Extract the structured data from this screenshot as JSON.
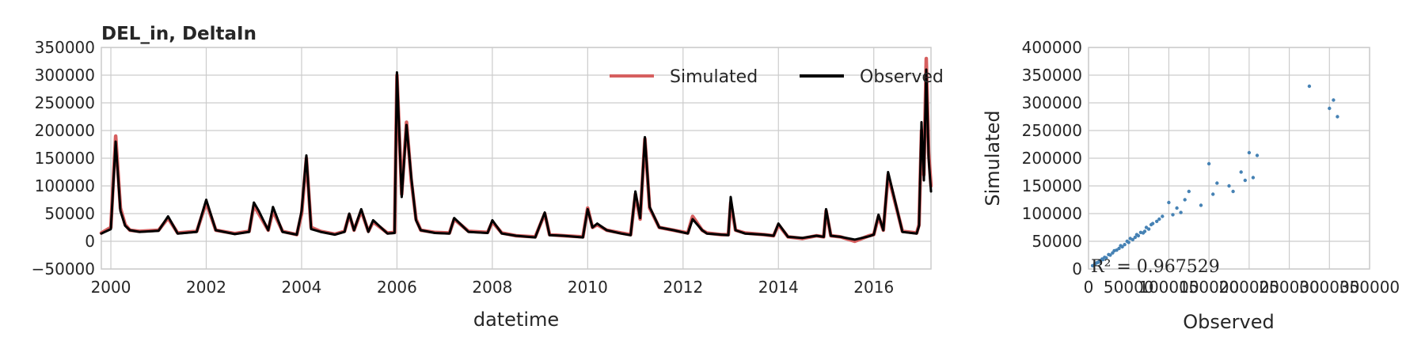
{
  "chart_data": [
    {
      "type": "line",
      "title": "DEL_in, DeltaIn",
      "xlabel": "datetime",
      "ylabel": "",
      "xlim": [
        1999.8,
        2017.2
      ],
      "ylim": [
        -50000,
        350000
      ],
      "x_ticks": [
        "2000",
        "2002",
        "2004",
        "2006",
        "2008",
        "2010",
        "2012",
        "2014",
        "2016"
      ],
      "y_ticks": [
        "−50000",
        "0",
        "50000",
        "100000",
        "150000",
        "200000",
        "250000",
        "300000",
        "350000"
      ],
      "grid": true,
      "legend_position": "top-right",
      "legend": [
        "Simulated",
        "Observed"
      ],
      "series": [
        {
          "name": "Simulated",
          "color": "#d65f5f",
          "x": [
            1999.8,
            2000.0,
            2000.1,
            2000.2,
            2000.3,
            2000.4,
            2000.6,
            2001.0,
            2001.2,
            2001.4,
            2001.8,
            2002.0,
            2002.2,
            2002.6,
            2002.9,
            2003.0,
            2003.1,
            2003.3,
            2003.4,
            2003.6,
            2003.9,
            2004.0,
            2004.1,
            2004.2,
            2004.4,
            2004.7,
            2004.9,
            2005.0,
            2005.1,
            2005.25,
            2005.4,
            2005.5,
            2005.8,
            2005.95,
            2006.0,
            2006.1,
            2006.2,
            2006.3,
            2006.4,
            2006.5,
            2006.8,
            2007.1,
            2007.2,
            2007.5,
            2007.9,
            2008.0,
            2008.2,
            2008.5,
            2008.9,
            2009.1,
            2009.2,
            2009.5,
            2009.9,
            2010.0,
            2010.1,
            2010.2,
            2010.4,
            2010.7,
            2010.9,
            2011.0,
            2011.1,
            2011.2,
            2011.3,
            2011.5,
            2011.8,
            2012.1,
            2012.2,
            2012.4,
            2012.5,
            2012.8,
            2012.95,
            2013.0,
            2013.1,
            2013.3,
            2013.7,
            2013.9,
            2014.0,
            2014.2,
            2014.5,
            2014.8,
            2014.95,
            2015.0,
            2015.1,
            2015.3,
            2015.6,
            2015.9,
            2016.0,
            2016.1,
            2016.2,
            2016.3,
            2016.6,
            2016.9,
            2016.95,
            2017.0,
            2017.05,
            2017.1,
            2017.15,
            2017.2
          ],
          "y": [
            15000,
            25000,
            190000,
            60000,
            30000,
            20000,
            18000,
            20000,
            42000,
            15000,
            18000,
            70000,
            20000,
            14000,
            18000,
            65000,
            50000,
            20000,
            55000,
            18000,
            12000,
            50000,
            150000,
            25000,
            18000,
            13000,
            18000,
            48000,
            20000,
            55000,
            18000,
            35000,
            15000,
            16000,
            300000,
            85000,
            215000,
            110000,
            40000,
            20000,
            16000,
            15000,
            40000,
            18000,
            16000,
            35000,
            15000,
            10000,
            8000,
            50000,
            12000,
            10000,
            8000,
            60000,
            25000,
            30000,
            20000,
            15000,
            12000,
            85000,
            40000,
            185000,
            60000,
            25000,
            20000,
            15000,
            45000,
            20000,
            15000,
            12000,
            12000,
            70000,
            20000,
            15000,
            12000,
            10000,
            30000,
            8000,
            5000,
            10000,
            8000,
            55000,
            10000,
            8000,
            0,
            10000,
            12000,
            45000,
            20000,
            120000,
            18000,
            15000,
            30000,
            200000,
            120000,
            330000,
            160000,
            100000
          ]
        },
        {
          "name": "Observed",
          "color": "#000000",
          "x": [
            1999.8,
            2000.0,
            2000.1,
            2000.2,
            2000.3,
            2000.4,
            2000.6,
            2001.0,
            2001.2,
            2001.4,
            2001.8,
            2002.0,
            2002.2,
            2002.6,
            2002.9,
            2003.0,
            2003.1,
            2003.3,
            2003.4,
            2003.6,
            2003.9,
            2004.0,
            2004.1,
            2004.2,
            2004.4,
            2004.7,
            2004.9,
            2005.0,
            2005.1,
            2005.25,
            2005.4,
            2005.5,
            2005.8,
            2005.95,
            2006.0,
            2006.1,
            2006.2,
            2006.3,
            2006.4,
            2006.5,
            2006.8,
            2007.1,
            2007.2,
            2007.5,
            2007.9,
            2008.0,
            2008.2,
            2008.5,
            2008.9,
            2009.1,
            2009.2,
            2009.5,
            2009.9,
            2010.0,
            2010.1,
            2010.2,
            2010.4,
            2010.7,
            2010.9,
            2011.0,
            2011.1,
            2011.2,
            2011.3,
            2011.5,
            2011.8,
            2012.1,
            2012.2,
            2012.4,
            2012.5,
            2012.8,
            2012.95,
            2013.0,
            2013.1,
            2013.3,
            2013.7,
            2013.9,
            2014.0,
            2014.2,
            2014.5,
            2014.8,
            2014.95,
            2015.0,
            2015.1,
            2015.3,
            2015.6,
            2015.9,
            2016.0,
            2016.1,
            2016.2,
            2016.3,
            2016.6,
            2016.9,
            2016.95,
            2017.0,
            2017.05,
            2017.1,
            2017.15,
            2017.2
          ],
          "y": [
            14000,
            22000,
            180000,
            55000,
            28000,
            20000,
            17000,
            19000,
            45000,
            14000,
            17000,
            75000,
            20000,
            13000,
            17000,
            70000,
            55000,
            20000,
            62000,
            17000,
            12000,
            55000,
            155000,
            22000,
            17000,
            12000,
            17000,
            50000,
            20000,
            58000,
            17000,
            38000,
            14000,
            15000,
            305000,
            80000,
            210000,
            115000,
            38000,
            20000,
            15000,
            14000,
            42000,
            17000,
            15000,
            38000,
            14000,
            10000,
            7000,
            52000,
            11000,
            10000,
            7000,
            58000,
            25000,
            32000,
            20000,
            14000,
            11000,
            90000,
            42000,
            188000,
            62000,
            25000,
            20000,
            14000,
            40000,
            20000,
            14000,
            12000,
            11000,
            80000,
            20000,
            14000,
            12000,
            10000,
            32000,
            8000,
            6000,
            10000,
            8000,
            58000,
            10000,
            8000,
            3000,
            9000,
            12000,
            48000,
            20000,
            125000,
            17000,
            14000,
            28000,
            215000,
            110000,
            310000,
            150000,
            90000
          ]
        }
      ]
    },
    {
      "type": "scatter",
      "title": "",
      "xlabel": "Observed",
      "ylabel": "Simulated",
      "xlim": [
        0,
        350000
      ],
      "ylim": [
        0,
        400000
      ],
      "x_ticks": [
        "0",
        "50000",
        "100000",
        "150000",
        "200000",
        "250000",
        "300000",
        "350000"
      ],
      "y_ticks": [
        "0",
        "50000",
        "100000",
        "150000",
        "200000",
        "250000",
        "300000",
        "350000",
        "400000"
      ],
      "grid": true,
      "annotation": "R² = 0.967529",
      "color": "#4682b4",
      "x": [
        5000,
        8000,
        10000,
        12000,
        14000,
        15000,
        17000,
        18000,
        20000,
        22000,
        25000,
        27000,
        30000,
        32000,
        35000,
        38000,
        40000,
        42000,
        45000,
        48000,
        50000,
        52000,
        55000,
        58000,
        60000,
        62000,
        65000,
        68000,
        70000,
        72000,
        75000,
        78000,
        80000,
        85000,
        88000,
        92000,
        100000,
        105000,
        110000,
        115000,
        120000,
        125000,
        140000,
        150000,
        155000,
        160000,
        175000,
        180000,
        190000,
        195000,
        200000,
        205000,
        210000,
        275000,
        300000,
        305000,
        310000
      ],
      "y": [
        6000,
        9000,
        11000,
        12000,
        15000,
        14000,
        18000,
        17000,
        21000,
        20000,
        26000,
        25000,
        29000,
        33000,
        34000,
        37000,
        42000,
        40000,
        44000,
        50000,
        48000,
        55000,
        53000,
        57000,
        62000,
        60000,
        66000,
        65000,
        68000,
        75000,
        72000,
        80000,
        82000,
        86000,
        90000,
        95000,
        120000,
        98000,
        110000,
        102000,
        125000,
        140000,
        115000,
        190000,
        135000,
        155000,
        150000,
        140000,
        175000,
        160000,
        210000,
        165000,
        205000,
        330000,
        290000,
        305000,
        275000
      ]
    }
  ]
}
